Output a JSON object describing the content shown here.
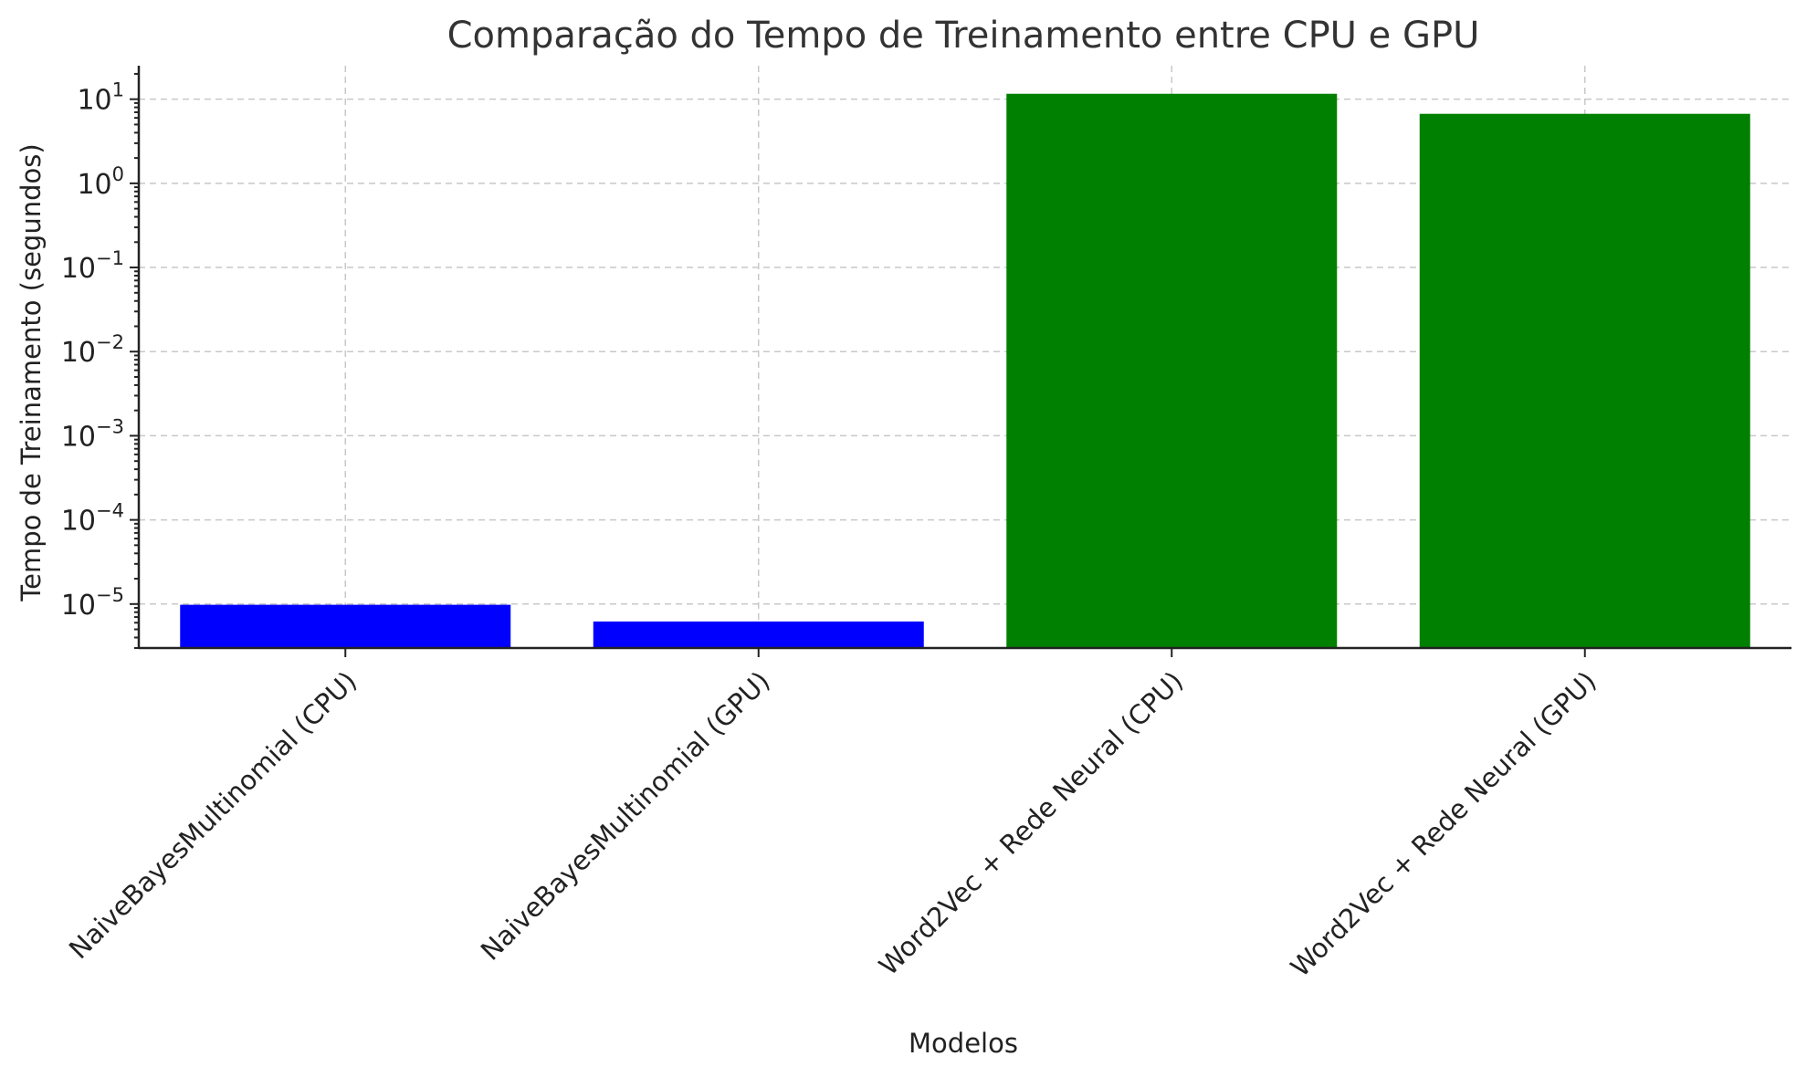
{
  "chart_data": {
    "type": "bar",
    "title": "Comparação do Tempo de Treinamento entre CPU e GPU",
    "xlabel": "Modelos",
    "ylabel": "Tempo de Treinamento (segundos)",
    "yscale": "log",
    "ylim": [
      3e-06,
      25
    ],
    "y_ticks": [
      {
        "base": "10",
        "exp": "−5",
        "value": 1e-05
      },
      {
        "base": "10",
        "exp": "−4",
        "value": 0.0001
      },
      {
        "base": "10",
        "exp": "−3",
        "value": 0.001
      },
      {
        "base": "10",
        "exp": "−2",
        "value": 0.01
      },
      {
        "base": "10",
        "exp": "−1",
        "value": 0.1
      },
      {
        "base": "10",
        "exp": "0",
        "value": 1
      },
      {
        "base": "10",
        "exp": "1",
        "value": 10
      }
    ],
    "grid": true,
    "categories": [
      "NaiveBayesMultinomial (CPU)",
      "NaiveBayesMultinomial (GPU)",
      "Word2Vec + Rede Neural (CPU)",
      "Word2Vec + Rede Neural (GPU)"
    ],
    "values": [
      9.8e-06,
      6.2e-06,
      11.6,
      6.7
    ],
    "colors": [
      "#0000ff",
      "#0000ff",
      "#008000",
      "#008000"
    ]
  }
}
